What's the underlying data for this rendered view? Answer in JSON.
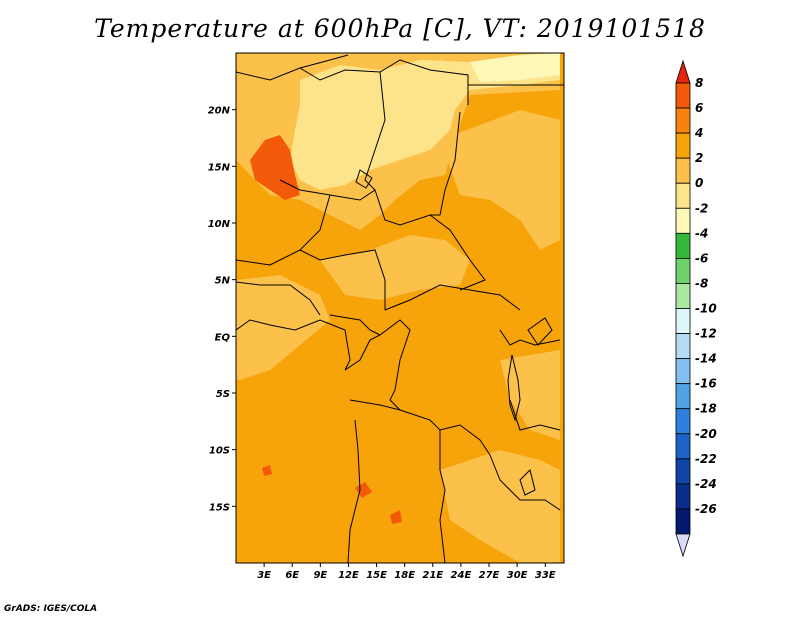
{
  "title": "Temperature at 600hPa [C], VT: 2019101518",
  "footer": "GrADS: IGES/COLA",
  "map": {
    "lon_range": [
      0,
      35
    ],
    "lat_range": [
      -20,
      25
    ],
    "lon_ticks": [
      {
        "value": 3,
        "label": "3E"
      },
      {
        "value": 6,
        "label": "6E"
      },
      {
        "value": 9,
        "label": "9E"
      },
      {
        "value": 12,
        "label": "12E"
      },
      {
        "value": 15,
        "label": "15E"
      },
      {
        "value": 18,
        "label": "18E"
      },
      {
        "value": 21,
        "label": "21E"
      },
      {
        "value": 24,
        "label": "24E"
      },
      {
        "value": 27,
        "label": "27E"
      },
      {
        "value": 30,
        "label": "30E"
      },
      {
        "value": 33,
        "label": "33E"
      }
    ],
    "lat_ticks": [
      {
        "value": 20,
        "label": "20N"
      },
      {
        "value": 15,
        "label": "15N"
      },
      {
        "value": 10,
        "label": "10N"
      },
      {
        "value": 5,
        "label": "5N"
      },
      {
        "value": 0,
        "label": "EQ"
      },
      {
        "value": -5,
        "label": "5S"
      },
      {
        "value": -10,
        "label": "10S"
      },
      {
        "value": -15,
        "label": "15S"
      }
    ],
    "background_color": "#f7a30a"
  },
  "colorbar": {
    "labels": [
      "8",
      "6",
      "4",
      "2",
      "0",
      "-2",
      "-4",
      "-6",
      "-8",
      "-10",
      "-12",
      "-14",
      "-16",
      "-18",
      "-20",
      "-22",
      "-24",
      "-26"
    ],
    "colors": [
      "#e8240e",
      "#f25a0a",
      "#f7820c",
      "#f7a30a",
      "#fbc14a",
      "#fde48a",
      "#fdf7b8",
      "#35b83a",
      "#6fd16a",
      "#a8e8a0",
      "#e0f5f8",
      "#b4dcf7",
      "#82c0f0",
      "#52a2e6",
      "#2f80de",
      "#1c62c8",
      "#0f44a8",
      "#0a2c8a",
      "#051870",
      "#dadbf6"
    ]
  }
}
